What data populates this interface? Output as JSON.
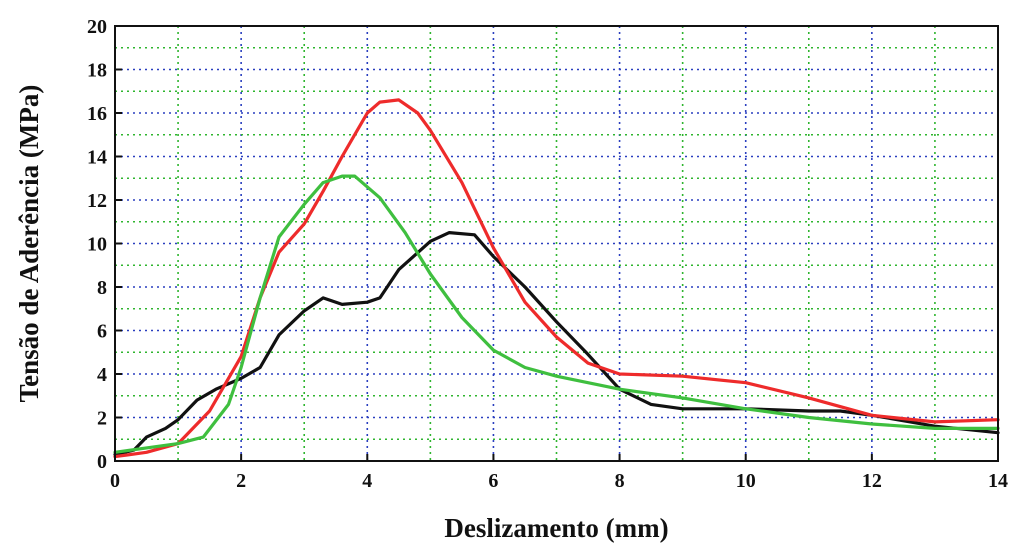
{
  "chart_data": {
    "type": "line",
    "xlabel": "Deslizamento (mm)",
    "ylabel": "Tensão de Aderência (MPa)",
    "xlim": [
      0,
      14
    ],
    "ylim": [
      0,
      20
    ],
    "xticks": [
      0,
      2,
      4,
      6,
      8,
      10,
      12,
      14
    ],
    "xtick_labels": [
      "0",
      "2",
      "4",
      "6",
      "8",
      "10",
      "12",
      "14"
    ],
    "yticks": [
      0,
      2,
      4,
      6,
      8,
      10,
      12,
      14,
      16,
      18,
      20
    ],
    "ytick_labels": [
      "0",
      "2",
      "4",
      "6",
      "8",
      "10",
      "12",
      "14",
      "16",
      "18",
      "20"
    ],
    "grid": {
      "major": true,
      "minor": true,
      "major_color": "#2a3fbf",
      "minor_color": "#2fb52f",
      "style": "dotted"
    },
    "series": [
      {
        "color": "#111111",
        "x": [
          0,
          0.3,
          0.5,
          0.8,
          1.0,
          1.3,
          1.6,
          2.0,
          2.3,
          2.6,
          3.0,
          3.3,
          3.6,
          4.0,
          4.2,
          4.5,
          5.0,
          5.3,
          5.7,
          6.0,
          6.5,
          7.0,
          7.5,
          8.0,
          8.5,
          9.0,
          10.0,
          11.0,
          11.5,
          12.0,
          13.0,
          14.0
        ],
        "y": [
          0.3,
          0.5,
          1.1,
          1.5,
          1.9,
          2.8,
          3.3,
          3.8,
          4.3,
          5.8,
          6.9,
          7.5,
          7.2,
          7.3,
          7.5,
          8.8,
          10.1,
          10.5,
          10.4,
          9.4,
          8.0,
          6.4,
          4.9,
          3.3,
          2.6,
          2.4,
          2.4,
          2.3,
          2.3,
          2.1,
          1.6,
          1.3
        ]
      },
      {
        "color": "#ee2b2b",
        "x": [
          0,
          0.5,
          1.0,
          1.5,
          2.0,
          2.3,
          2.6,
          3.0,
          3.3,
          3.6,
          4.0,
          4.2,
          4.5,
          4.8,
          5.0,
          5.5,
          6.0,
          6.5,
          7.0,
          7.5,
          8.0,
          9.0,
          10.0,
          11.0,
          12.0,
          13.0,
          14.0
        ],
        "y": [
          0.2,
          0.4,
          0.8,
          2.3,
          4.8,
          7.5,
          9.6,
          10.9,
          12.4,
          14.0,
          16.0,
          16.5,
          16.6,
          16.0,
          15.2,
          12.8,
          9.8,
          7.3,
          5.7,
          4.5,
          4.0,
          3.9,
          3.6,
          2.9,
          2.1,
          1.8,
          1.9
        ]
      },
      {
        "color": "#3fbf3f",
        "x": [
          0,
          0.5,
          1.0,
          1.4,
          1.8,
          2.0,
          2.3,
          2.6,
          3.0,
          3.3,
          3.6,
          3.8,
          4.2,
          4.6,
          5.0,
          5.5,
          6.0,
          6.5,
          7.0,
          7.5,
          8.0,
          9.0,
          10.0,
          11.0,
          12.0,
          13.0,
          14.0
        ],
        "y": [
          0.4,
          0.6,
          0.8,
          1.1,
          2.6,
          4.3,
          7.5,
          10.3,
          11.8,
          12.8,
          13.1,
          13.1,
          12.1,
          10.5,
          8.6,
          6.6,
          5.1,
          4.3,
          3.9,
          3.6,
          3.3,
          2.9,
          2.4,
          2.0,
          1.7,
          1.5,
          1.5
        ]
      }
    ]
  }
}
